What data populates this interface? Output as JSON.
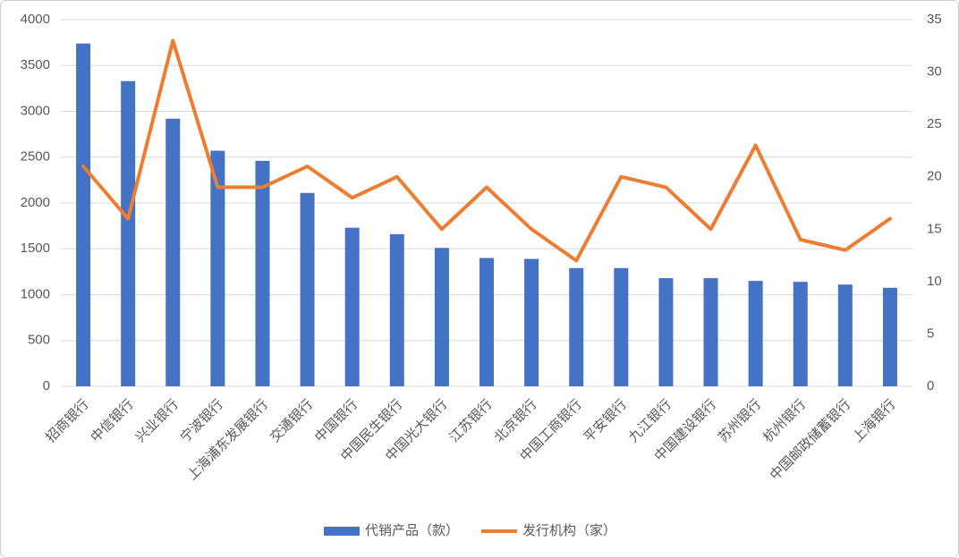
{
  "chart_data": {
    "type": "bar-line",
    "categories": [
      "招商银行",
      "中信银行",
      "兴业银行",
      "宁波银行",
      "上海浦东发展银行",
      "交通银行",
      "中国银行",
      "中国民生银行",
      "中国光大银行",
      "江苏银行",
      "北京银行",
      "中国工商银行",
      "平安银行",
      "九江银行",
      "中国建设银行",
      "苏州银行",
      "杭州银行",
      "中国邮政储蓄银行",
      "上海银行"
    ],
    "series": [
      {
        "name": "代销产品（款）",
        "type": "bar",
        "color": "#4472c4",
        "axis": "y",
        "values": [
          3740,
          3330,
          2920,
          2570,
          2460,
          2110,
          1730,
          1660,
          1510,
          1400,
          1390,
          1290,
          1290,
          1180,
          1180,
          1150,
          1140,
          1110,
          1075
        ]
      },
      {
        "name": "发行机构（家）",
        "type": "line",
        "color": "#ed7d31",
        "axis": "y2",
        "values": [
          21,
          16,
          33,
          19,
          19,
          21,
          18,
          20,
          15,
          19,
          15,
          12,
          20,
          19,
          15,
          23,
          14,
          13,
          16
        ]
      }
    ],
    "ylim": [
      0,
      4000
    ],
    "yticks": [
      0,
      500,
      1000,
      1500,
      2000,
      2500,
      3000,
      3500,
      4000
    ],
    "y2lim": [
      0,
      35
    ],
    "y2ticks": [
      0,
      5,
      10,
      15,
      20,
      25,
      30,
      35
    ],
    "grid": true,
    "legend": "bottom"
  }
}
